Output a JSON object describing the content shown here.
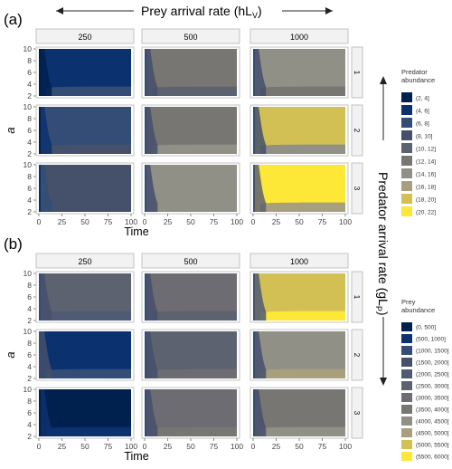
{
  "header": {
    "top_label": "Prey arrival rate (hL",
    "top_sub": "V",
    "right_label": "Predator arrival rate (gL",
    "right_sub": "P"
  },
  "colors": {
    "strip_bg": "#f2f2f2",
    "panel_border": "#b5b5b5",
    "tick": "#444444"
  },
  "chart_data": [
    {
      "type": "heatmap",
      "panel_label": "(a)",
      "xlabel": "Time",
      "ylabel": "a",
      "x_ticks": [
        0,
        25,
        50,
        75,
        100
      ],
      "y_ticks": [
        2,
        4,
        6,
        8,
        10
      ],
      "xlim": [
        0,
        100
      ],
      "ylim": [
        2,
        10
      ],
      "columns": [
        "250",
        "500",
        "1000"
      ],
      "rows": [
        "1",
        "2",
        "3"
      ],
      "legend": {
        "title": [
          "Predator",
          "abundance"
        ],
        "entries": [
          "(2, 4]",
          "(4, 6]",
          "(6, 8]",
          "(8, 10]",
          "(10, 12]",
          "(12, 14]",
          "(14, 16]",
          "(16, 18]",
          "(18, 20]",
          "(20, 22]"
        ],
        "colors": [
          "#00204d",
          "#0b316f",
          "#334d76",
          "#45506b",
          "#5d6270",
          "#777673",
          "#909087",
          "#a8a07d",
          "#d2c055",
          "#fde737"
        ]
      },
      "cells": [
        [
          {
            "base": 1,
            "early": 0,
            "band": 2
          },
          {
            "base": 5,
            "early": 3,
            "band": 4
          },
          {
            "base": 6,
            "early": 3,
            "band": 5
          }
        ],
        [
          {
            "base": 2,
            "early": 1,
            "band": 3
          },
          {
            "base": 5,
            "early": 3,
            "band": 6
          },
          {
            "base": 8,
            "early": 3,
            "band": 6
          }
        ],
        [
          {
            "base": 3,
            "early": 2,
            "band": 3
          },
          {
            "base": 6,
            "early": 3,
            "band": 6
          },
          {
            "base": 9,
            "early": 4,
            "band": 7
          }
        ]
      ]
    },
    {
      "type": "heatmap",
      "panel_label": "(b)",
      "xlabel": "Time",
      "ylabel": "a",
      "x_ticks": [
        0,
        25,
        50,
        75,
        100
      ],
      "y_ticks": [
        2,
        4,
        6,
        8,
        10
      ],
      "xlim": [
        0,
        100
      ],
      "ylim": [
        2,
        10
      ],
      "columns": [
        "250",
        "500",
        "1000"
      ],
      "rows": [
        "1",
        "2",
        "3"
      ],
      "legend": {
        "title": [
          "Prey",
          "abundance"
        ],
        "entries": [
          "(0, 500]",
          "(500, 1000]",
          "(1000, 1500]",
          "(1500, 2000]",
          "(2000, 2500]",
          "(2500, 3000]",
          "(3000, 3500]",
          "(3500, 4000]",
          "(4000, 4500]",
          "(4500, 5000]",
          "(5000, 5500]",
          "(5500, 6000]"
        ],
        "colors": [
          "#00204d",
          "#0b316f",
          "#334d76",
          "#45506b",
          "#4f5b74",
          "#5d6270",
          "#6c6c72",
          "#777673",
          "#909087",
          "#a8a07d",
          "#d2c055",
          "#fde737"
        ]
      },
      "cells": [
        [
          {
            "base": 5,
            "early": 3,
            "band": 4
          },
          {
            "base": 6,
            "early": 3,
            "band": 5
          },
          {
            "base": 10,
            "early": 4,
            "band": 11
          }
        ],
        [
          {
            "base": 1,
            "early": 3,
            "band": 2
          },
          {
            "base": 5,
            "early": 3,
            "band": 6
          },
          {
            "base": 8,
            "early": 3,
            "band": 9
          }
        ],
        [
          {
            "base": 0,
            "early": 1,
            "band": 1
          },
          {
            "base": 6,
            "early": 3,
            "band": 7
          },
          {
            "base": 7,
            "early": 3,
            "band": 8
          }
        ]
      ]
    }
  ]
}
